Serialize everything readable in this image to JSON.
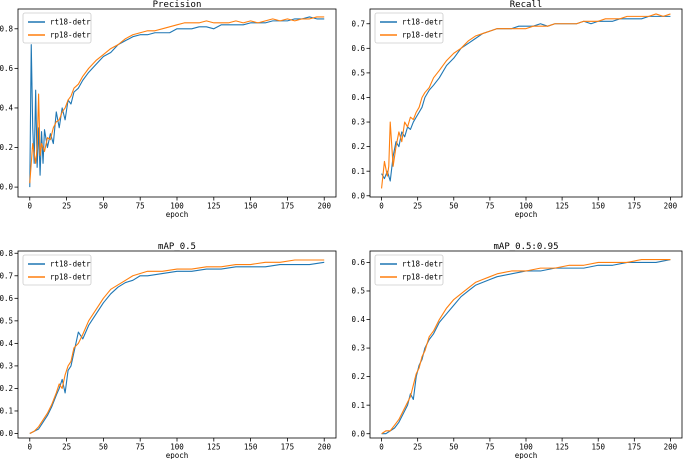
{
  "colors": {
    "blue": "#1f77b4",
    "orange": "#ff7f0e"
  },
  "chart_data": [
    {
      "id": "precision",
      "type": "line",
      "title": "Precision",
      "xlabel": "epoch",
      "ylabel": "",
      "xlim": [
        -8,
        208
      ],
      "ylim": [
        -0.05,
        0.9
      ],
      "xticks": [
        0,
        25,
        50,
        75,
        100,
        125,
        150,
        175,
        200
      ],
      "yticks": [
        0.0,
        0.2,
        0.4,
        0.6,
        0.8
      ],
      "ytick_labels": [
        "0.0",
        "0.2",
        "0.4",
        "0.6",
        "0.8"
      ],
      "legend": "top-left",
      "series": [
        {
          "name": "rt18-detr",
          "color": "#1f77b4",
          "x": [
            0,
            1,
            2,
            3,
            4,
            5,
            6,
            7,
            8,
            9,
            10,
            12,
            14,
            16,
            18,
            20,
            22,
            24,
            26,
            28,
            30,
            33,
            36,
            40,
            45,
            50,
            55,
            60,
            65,
            70,
            75,
            80,
            85,
            90,
            95,
            100,
            105,
            110,
            115,
            120,
            125,
            130,
            135,
            140,
            145,
            150,
            155,
            160,
            165,
            170,
            175,
            180,
            185,
            190,
            195,
            200
          ],
          "y": [
            0.0,
            0.72,
            0.3,
            0.12,
            0.49,
            0.1,
            0.3,
            0.06,
            0.28,
            0.12,
            0.29,
            0.2,
            0.27,
            0.22,
            0.38,
            0.3,
            0.4,
            0.34,
            0.44,
            0.42,
            0.48,
            0.5,
            0.54,
            0.58,
            0.62,
            0.66,
            0.68,
            0.72,
            0.74,
            0.76,
            0.77,
            0.77,
            0.78,
            0.78,
            0.78,
            0.8,
            0.8,
            0.8,
            0.81,
            0.81,
            0.8,
            0.82,
            0.82,
            0.82,
            0.82,
            0.83,
            0.83,
            0.83,
            0.84,
            0.84,
            0.84,
            0.85,
            0.85,
            0.86,
            0.85,
            0.85
          ]
        },
        {
          "name": "rp18-detr",
          "color": "#ff7f0e",
          "x": [
            0,
            2,
            4,
            5,
            6,
            7,
            8,
            10,
            12,
            14,
            16,
            18,
            20,
            22,
            24,
            26,
            28,
            30,
            33,
            36,
            40,
            45,
            50,
            55,
            60,
            65,
            70,
            75,
            80,
            85,
            90,
            95,
            100,
            105,
            110,
            115,
            120,
            125,
            130,
            135,
            140,
            145,
            150,
            155,
            160,
            165,
            170,
            175,
            180,
            185,
            190,
            195,
            200
          ],
          "y": [
            0.02,
            0.22,
            0.12,
            0.2,
            0.47,
            0.16,
            0.22,
            0.18,
            0.25,
            0.24,
            0.3,
            0.33,
            0.34,
            0.38,
            0.4,
            0.44,
            0.46,
            0.5,
            0.52,
            0.56,
            0.6,
            0.64,
            0.67,
            0.7,
            0.72,
            0.75,
            0.77,
            0.78,
            0.79,
            0.79,
            0.8,
            0.81,
            0.82,
            0.83,
            0.83,
            0.83,
            0.84,
            0.83,
            0.83,
            0.83,
            0.84,
            0.83,
            0.84,
            0.83,
            0.84,
            0.85,
            0.84,
            0.85,
            0.84,
            0.85,
            0.85,
            0.86,
            0.86
          ]
        }
      ]
    },
    {
      "id": "recall",
      "type": "line",
      "title": "Recall",
      "xlabel": "epoch",
      "ylabel": "",
      "xlim": [
        -8,
        208
      ],
      "ylim": [
        -0.005,
        0.76
      ],
      "xticks": [
        0,
        25,
        50,
        75,
        100,
        125,
        150,
        175,
        200
      ],
      "yticks": [
        0.0,
        0.1,
        0.2,
        0.3,
        0.4,
        0.5,
        0.6,
        0.7
      ],
      "ytick_labels": [
        "0.0",
        "0.1",
        "0.2",
        "0.3",
        "0.4",
        "0.5",
        "0.6",
        "0.7"
      ],
      "legend": "top-left",
      "series": [
        {
          "name": "rt18-detr",
          "color": "#1f77b4",
          "x": [
            0,
            2,
            4,
            6,
            8,
            10,
            12,
            14,
            16,
            18,
            20,
            22,
            24,
            26,
            28,
            30,
            33,
            36,
            40,
            45,
            50,
            55,
            60,
            65,
            70,
            75,
            80,
            85,
            90,
            95,
            100,
            105,
            110,
            115,
            120,
            125,
            130,
            135,
            140,
            145,
            150,
            155,
            160,
            165,
            170,
            175,
            180,
            185,
            190,
            195,
            200
          ],
          "y": [
            0.09,
            0.07,
            0.1,
            0.06,
            0.16,
            0.22,
            0.2,
            0.26,
            0.24,
            0.28,
            0.27,
            0.3,
            0.32,
            0.34,
            0.36,
            0.4,
            0.43,
            0.45,
            0.48,
            0.53,
            0.56,
            0.6,
            0.62,
            0.64,
            0.66,
            0.67,
            0.68,
            0.68,
            0.68,
            0.69,
            0.69,
            0.69,
            0.7,
            0.69,
            0.7,
            0.7,
            0.7,
            0.7,
            0.71,
            0.7,
            0.71,
            0.71,
            0.71,
            0.72,
            0.72,
            0.72,
            0.72,
            0.73,
            0.73,
            0.73,
            0.73
          ]
        },
        {
          "name": "rp18-detr",
          "color": "#ff7f0e",
          "x": [
            0,
            2,
            4,
            5,
            6,
            8,
            10,
            12,
            14,
            16,
            18,
            20,
            22,
            24,
            26,
            28,
            30,
            33,
            36,
            40,
            45,
            50,
            55,
            60,
            65,
            70,
            75,
            80,
            85,
            90,
            95,
            100,
            105,
            110,
            115,
            120,
            125,
            130,
            135,
            140,
            145,
            150,
            155,
            160,
            165,
            170,
            175,
            180,
            185,
            190,
            195,
            200
          ],
          "y": [
            0.03,
            0.14,
            0.08,
            0.12,
            0.3,
            0.12,
            0.2,
            0.26,
            0.22,
            0.3,
            0.28,
            0.32,
            0.31,
            0.34,
            0.36,
            0.4,
            0.42,
            0.44,
            0.48,
            0.51,
            0.55,
            0.58,
            0.6,
            0.63,
            0.65,
            0.66,
            0.67,
            0.68,
            0.68,
            0.68,
            0.68,
            0.68,
            0.69,
            0.69,
            0.69,
            0.7,
            0.7,
            0.7,
            0.7,
            0.71,
            0.71,
            0.71,
            0.72,
            0.72,
            0.72,
            0.73,
            0.73,
            0.73,
            0.73,
            0.74,
            0.73,
            0.74
          ]
        }
      ]
    },
    {
      "id": "map50",
      "type": "line",
      "title": "mAP_0.5",
      "xlabel": "epoch",
      "ylabel": "",
      "xlim": [
        -8,
        208
      ],
      "ylim": [
        -0.02,
        0.81
      ],
      "xticks": [
        0,
        25,
        50,
        75,
        100,
        125,
        150,
        175,
        200
      ],
      "yticks": [
        0.0,
        0.1,
        0.2,
        0.3,
        0.4,
        0.5,
        0.6,
        0.7,
        0.8
      ],
      "ytick_labels": [
        "0.0",
        "0.1",
        "0.2",
        "0.3",
        "0.4",
        "0.5",
        "0.6",
        "0.7",
        "0.8"
      ],
      "legend": "top-left",
      "series": [
        {
          "name": "rt18-detr",
          "color": "#1f77b4",
          "x": [
            0,
            3,
            6,
            9,
            12,
            15,
            18,
            20,
            22,
            24,
            26,
            28,
            30,
            33,
            36,
            40,
            45,
            50,
            55,
            60,
            65,
            70,
            75,
            80,
            90,
            100,
            110,
            120,
            130,
            140,
            150,
            160,
            170,
            180,
            190,
            200
          ],
          "y": [
            0.0,
            0.01,
            0.02,
            0.05,
            0.08,
            0.12,
            0.17,
            0.2,
            0.24,
            0.18,
            0.28,
            0.3,
            0.36,
            0.45,
            0.42,
            0.48,
            0.53,
            0.58,
            0.62,
            0.65,
            0.67,
            0.68,
            0.7,
            0.7,
            0.71,
            0.72,
            0.72,
            0.73,
            0.73,
            0.74,
            0.74,
            0.74,
            0.75,
            0.75,
            0.75,
            0.76
          ]
        },
        {
          "name": "rp18-detr",
          "color": "#ff7f0e",
          "x": [
            0,
            3,
            6,
            9,
            12,
            15,
            18,
            20,
            22,
            24,
            26,
            28,
            30,
            33,
            36,
            40,
            45,
            50,
            55,
            60,
            65,
            70,
            75,
            80,
            90,
            100,
            110,
            120,
            130,
            140,
            150,
            160,
            170,
            180,
            190,
            200
          ],
          "y": [
            0.0,
            0.01,
            0.03,
            0.06,
            0.09,
            0.13,
            0.18,
            0.22,
            0.2,
            0.26,
            0.3,
            0.32,
            0.38,
            0.4,
            0.44,
            0.5,
            0.55,
            0.6,
            0.64,
            0.66,
            0.68,
            0.7,
            0.71,
            0.72,
            0.72,
            0.73,
            0.73,
            0.74,
            0.74,
            0.75,
            0.75,
            0.76,
            0.76,
            0.77,
            0.77,
            0.77
          ]
        }
      ]
    },
    {
      "id": "map5095",
      "type": "line",
      "title": "mAP_0.5:0.95",
      "xlabel": "epoch",
      "ylabel": "",
      "xlim": [
        -8,
        208
      ],
      "ylim": [
        -0.015,
        0.64
      ],
      "xticks": [
        0,
        25,
        50,
        75,
        100,
        125,
        150,
        175,
        200
      ],
      "yticks": [
        0.0,
        0.1,
        0.2,
        0.3,
        0.4,
        0.5,
        0.6
      ],
      "ytick_labels": [
        "0.0",
        "0.1",
        "0.2",
        "0.3",
        "0.4",
        "0.5",
        "0.6"
      ],
      "legend": "top-left",
      "series": [
        {
          "name": "rt18-detr",
          "color": "#1f77b4",
          "x": [
            0,
            3,
            6,
            9,
            12,
            15,
            18,
            20,
            22,
            24,
            26,
            28,
            30,
            33,
            36,
            40,
            45,
            50,
            55,
            60,
            65,
            70,
            75,
            80,
            90,
            100,
            110,
            120,
            130,
            140,
            150,
            160,
            170,
            180,
            190,
            200
          ],
          "y": [
            0.0,
            0.0,
            0.01,
            0.02,
            0.04,
            0.07,
            0.1,
            0.14,
            0.12,
            0.2,
            0.24,
            0.26,
            0.3,
            0.33,
            0.35,
            0.39,
            0.42,
            0.45,
            0.48,
            0.5,
            0.52,
            0.53,
            0.54,
            0.55,
            0.56,
            0.57,
            0.57,
            0.58,
            0.58,
            0.58,
            0.59,
            0.59,
            0.6,
            0.6,
            0.6,
            0.61
          ]
        },
        {
          "name": "rp18-detr",
          "color": "#ff7f0e",
          "x": [
            0,
            3,
            6,
            9,
            12,
            15,
            18,
            20,
            22,
            24,
            26,
            28,
            30,
            33,
            36,
            40,
            45,
            50,
            55,
            60,
            65,
            70,
            75,
            80,
            90,
            100,
            110,
            120,
            130,
            140,
            150,
            160,
            170,
            180,
            190,
            200
          ],
          "y": [
            0.0,
            0.01,
            0.01,
            0.03,
            0.05,
            0.08,
            0.11,
            0.13,
            0.17,
            0.21,
            0.23,
            0.27,
            0.29,
            0.34,
            0.36,
            0.4,
            0.44,
            0.47,
            0.49,
            0.51,
            0.53,
            0.54,
            0.55,
            0.56,
            0.57,
            0.57,
            0.58,
            0.58,
            0.59,
            0.59,
            0.6,
            0.6,
            0.6,
            0.61,
            0.61,
            0.61
          ]
        }
      ]
    }
  ]
}
